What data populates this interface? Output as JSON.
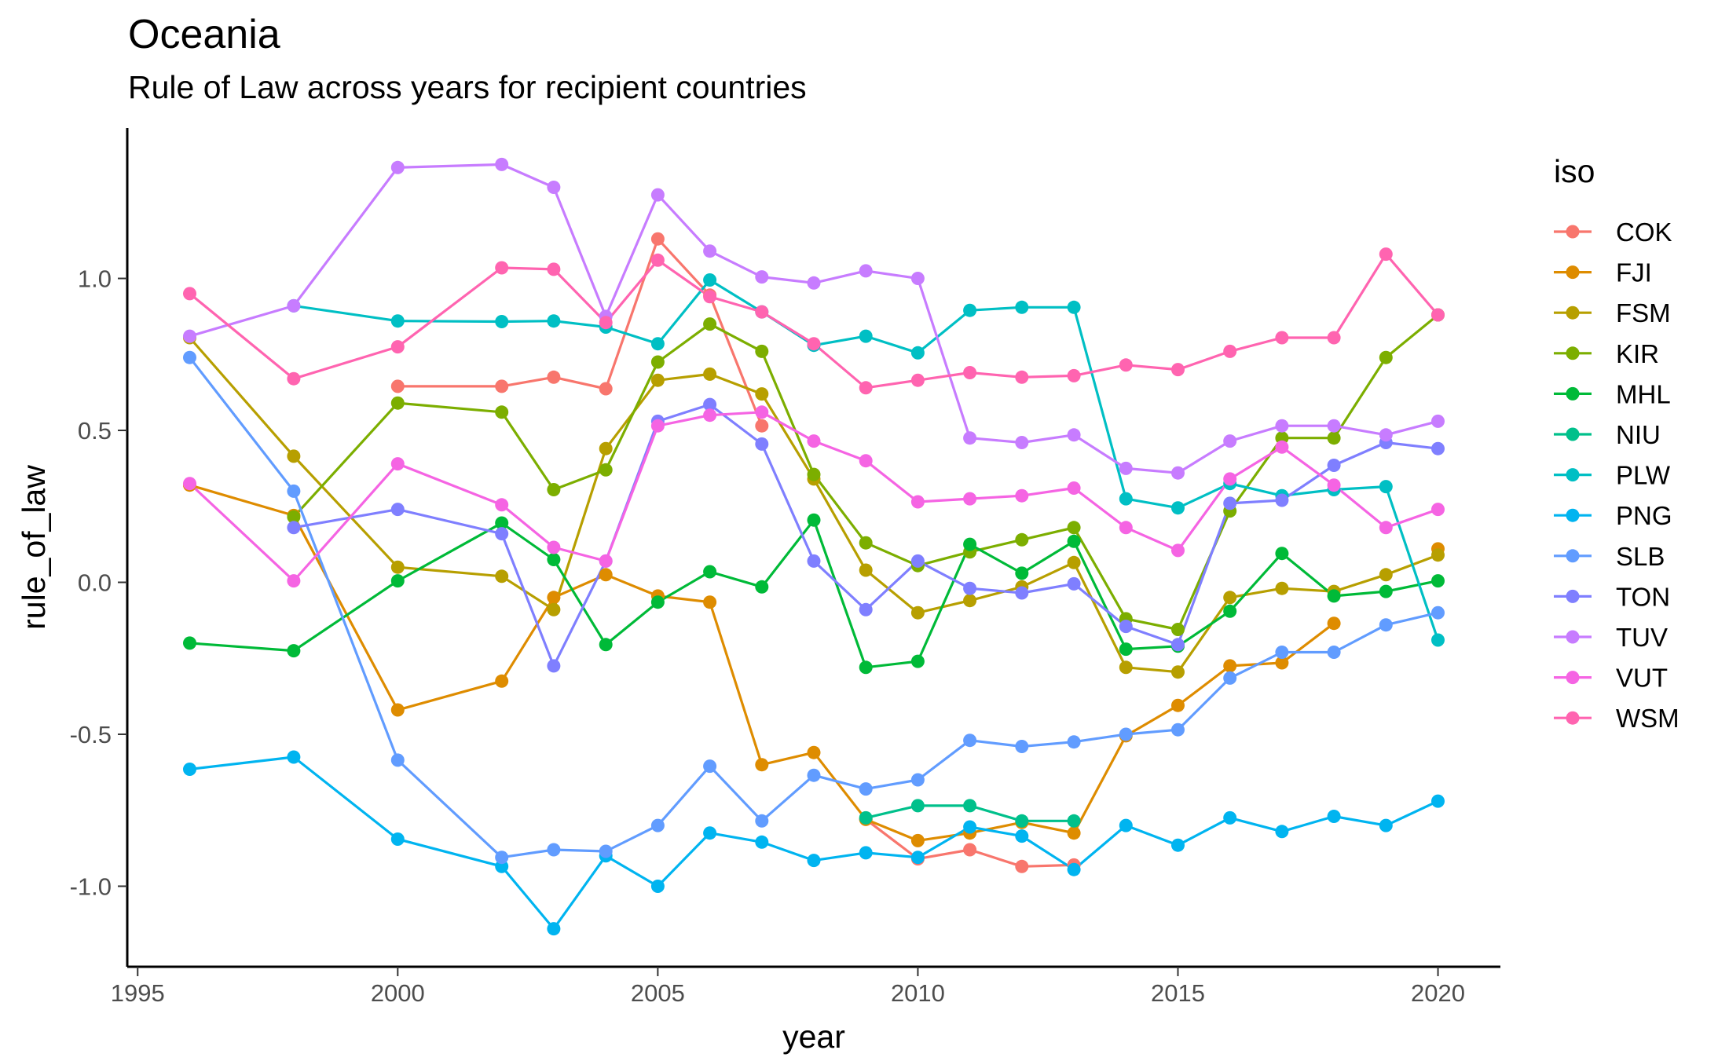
{
  "title": "Oceania",
  "subtitle": "Rule of Law across years for recipient countries",
  "chart_data": {
    "type": "line",
    "title": "Oceania",
    "subtitle": "Rule of Law across years for recipient countries",
    "xlabel": "year",
    "ylabel": "rule_of_law",
    "xlim": [
      1994.8,
      2021.2
    ],
    "ylim": [
      -1.265,
      1.495
    ],
    "x_ticks": [
      1995,
      2000,
      2005,
      2010,
      2015,
      2020
    ],
    "x_tick_labels": [
      "1995",
      "2000",
      "2005",
      "2010",
      "2015",
      "2020"
    ],
    "y_ticks": [
      -1.0,
      -0.5,
      0.0,
      0.5,
      1.0
    ],
    "y_tick_labels": [
      "-1.0",
      "-0.5",
      "0.0",
      "0.5",
      "1.0"
    ],
    "grid": false,
    "legend": {
      "title": "iso",
      "position": "right"
    },
    "x": [
      1996,
      1998,
      2000,
      2002,
      2003,
      2004,
      2005,
      2006,
      2007,
      2008,
      2009,
      2010,
      2011,
      2012,
      2013,
      2014,
      2015,
      2016,
      2017,
      2018,
      2019,
      2020
    ],
    "series": [
      {
        "name": "COK",
        "color": "#F8766D",
        "values": [
          null,
          null,
          0.645,
          0.645,
          0.675,
          0.637,
          1.13,
          0.945,
          0.515,
          null,
          -0.78,
          -0.91,
          -0.88,
          -0.935,
          -0.93,
          null,
          null,
          null,
          null,
          null,
          null,
          null
        ]
      },
      {
        "name": "FJI",
        "color": "#DE8C00",
        "values": [
          0.32,
          0.22,
          -0.42,
          -0.325,
          -0.05,
          0.025,
          -0.045,
          -0.065,
          -0.6,
          -0.56,
          -0.78,
          -0.85,
          -0.825,
          -0.79,
          -0.825,
          -0.505,
          -0.405,
          -0.275,
          -0.265,
          -0.135,
          null,
          0.11
        ]
      },
      {
        "name": "FSM",
        "color": "#B79F00",
        "values": [
          0.805,
          0.415,
          0.05,
          0.02,
          -0.09,
          0.44,
          0.665,
          0.685,
          0.62,
          0.34,
          0.04,
          -0.1,
          -0.06,
          -0.015,
          0.065,
          -0.28,
          -0.295,
          -0.05,
          -0.02,
          -0.03,
          0.025,
          0.09
        ]
      },
      {
        "name": "KIR",
        "color": "#7CAE00",
        "values": [
          null,
          0.215,
          0.59,
          0.56,
          0.305,
          0.37,
          0.725,
          0.85,
          0.76,
          0.355,
          0.13,
          0.055,
          0.1,
          0.14,
          0.18,
          -0.12,
          -0.155,
          0.235,
          0.475,
          0.475,
          0.74,
          0.88
        ]
      },
      {
        "name": "MHL",
        "color": "#00BA38",
        "values": [
          -0.2,
          -0.225,
          0.005,
          0.195,
          0.075,
          -0.205,
          -0.065,
          0.035,
          -0.015,
          0.205,
          -0.28,
          -0.26,
          0.125,
          0.03,
          0.135,
          -0.22,
          -0.21,
          -0.095,
          0.095,
          -0.045,
          -0.03,
          0.005
        ]
      },
      {
        "name": "NIU",
        "color": "#00C08B",
        "values": [
          null,
          null,
          null,
          null,
          null,
          null,
          null,
          null,
          null,
          null,
          -0.775,
          -0.735,
          -0.735,
          -0.785,
          -0.785,
          null,
          null,
          null,
          null,
          null,
          null,
          null
        ]
      },
      {
        "name": "PLW",
        "color": "#00BFC4",
        "values": [
          null,
          0.91,
          0.86,
          0.858,
          0.86,
          0.84,
          0.785,
          0.995,
          0.89,
          0.78,
          0.81,
          0.755,
          0.895,
          0.905,
          0.905,
          0.275,
          0.245,
          0.325,
          0.285,
          0.305,
          0.315,
          -0.19
        ]
      },
      {
        "name": "PNG",
        "color": "#00B4F0",
        "values": [
          -0.615,
          -0.575,
          -0.845,
          -0.935,
          -1.14,
          -0.9,
          -1.0,
          -0.825,
          -0.855,
          -0.915,
          -0.89,
          -0.905,
          -0.805,
          -0.835,
          -0.945,
          -0.8,
          -0.865,
          -0.775,
          -0.82,
          -0.77,
          -0.8,
          -0.72
        ]
      },
      {
        "name": "SLB",
        "color": "#619CFF",
        "values": [
          0.74,
          0.3,
          -0.585,
          -0.905,
          -0.88,
          -0.885,
          -0.8,
          -0.605,
          -0.785,
          -0.635,
          -0.68,
          -0.65,
          -0.52,
          -0.54,
          -0.525,
          -0.5,
          -0.485,
          -0.315,
          -0.23,
          -0.23,
          -0.14,
          -0.1
        ]
      },
      {
        "name": "TON",
        "color": "#7F7FFF",
        "values": [
          null,
          0.18,
          0.24,
          0.16,
          -0.275,
          0.07,
          0.53,
          0.585,
          0.455,
          0.07,
          -0.09,
          0.07,
          -0.02,
          -0.035,
          -0.005,
          -0.145,
          -0.205,
          0.26,
          0.27,
          0.385,
          0.46,
          0.44
        ]
      },
      {
        "name": "TUV",
        "color": "#C77CFF",
        "values": [
          0.81,
          0.91,
          1.365,
          1.375,
          1.3,
          0.875,
          1.275,
          1.09,
          1.005,
          0.985,
          1.025,
          1.0,
          0.475,
          0.46,
          0.485,
          0.375,
          0.36,
          0.465,
          0.515,
          0.515,
          0.485,
          0.53
        ]
      },
      {
        "name": "VUT",
        "color": "#F564E3",
        "values": [
          0.325,
          0.005,
          0.39,
          0.255,
          0.115,
          0.07,
          0.515,
          0.55,
          0.56,
          0.465,
          0.4,
          0.265,
          0.275,
          0.285,
          0.31,
          0.18,
          0.105,
          0.34,
          0.445,
          0.32,
          0.18,
          0.24
        ]
      },
      {
        "name": "WSM",
        "color": "#FF64B0",
        "values": [
          0.95,
          0.67,
          0.775,
          1.035,
          1.03,
          0.855,
          1.06,
          0.94,
          0.89,
          0.785,
          0.64,
          0.665,
          0.69,
          0.675,
          0.68,
          0.715,
          0.7,
          0.76,
          0.805,
          0.805,
          1.08,
          0.88
        ]
      }
    ]
  }
}
